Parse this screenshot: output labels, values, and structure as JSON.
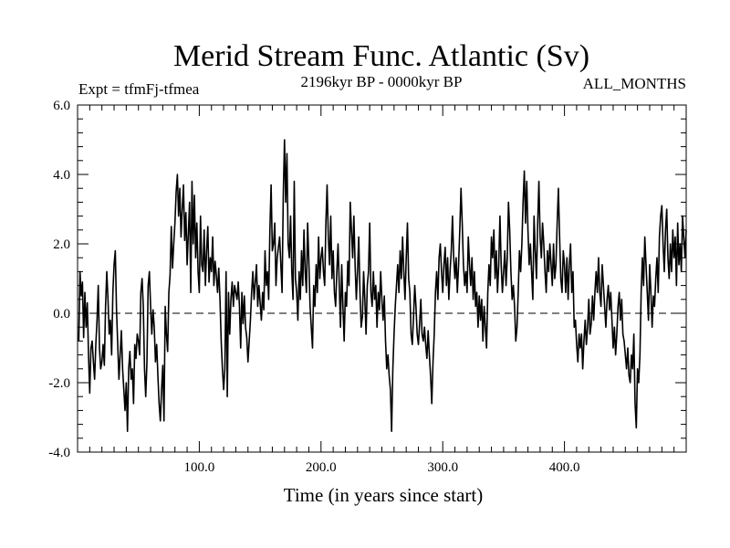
{
  "chart_data": {
    "type": "line",
    "title": "Merid Stream Func. Atlantic (Sv)",
    "subtitle_left": "Expt = tfmFj-tfmea",
    "subtitle_center": "2196kyr BP - 0000kyr BP",
    "subtitle_right": "ALL_MONTHS",
    "xlabel": "Time (in years since start)",
    "ylabel": "",
    "xlim": [
      0,
      500
    ],
    "ylim": [
      -4.0,
      6.0
    ],
    "x_ticks": [
      100,
      200,
      300,
      400
    ],
    "x_tick_labels": [
      "100.0",
      "200.0",
      "300.0",
      "400.0"
    ],
    "y_ticks": [
      -4,
      -2,
      0,
      2,
      4,
      6
    ],
    "y_tick_labels": [
      "-4.0",
      "-2.0",
      "0.0",
      "2.0",
      "4.0",
      "6.0"
    ],
    "reference_line": {
      "y": 0,
      "style": "dashed"
    },
    "series": [
      {
        "name": "Merid Stream Func. Atlantic",
        "x_start": 1,
        "x_step": 1,
        "values": [
          -0.8,
          1.2,
          0.5,
          0.9,
          -0.7,
          0.6,
          -0.4,
          0.3,
          -1.2,
          -2.3,
          -1.0,
          -0.8,
          -1.4,
          -1.9,
          -0.9,
          -0.2,
          0.8,
          -1.0,
          -1.6,
          -1.4,
          -0.9,
          -1.5,
          0.2,
          1.2,
          0.4,
          -0.6,
          -0.2,
          -1.2,
          0.6,
          1.4,
          1.8,
          0.1,
          -0.9,
          -1.9,
          -1.2,
          -0.5,
          -1.6,
          -2.2,
          -2.8,
          -2.0,
          -3.4,
          -1.6,
          -1.1,
          -1.9,
          -1.6,
          -2.6,
          -0.9,
          -1.3,
          -0.6,
          -0.8,
          -1.2,
          0.6,
          1.0,
          0.2,
          -1.6,
          -2.4,
          -1.4,
          0.8,
          1.2,
          0.2,
          -0.6,
          0.1,
          -0.4,
          -1.4,
          -0.9,
          -1.8,
          -2.6,
          -3.1,
          -2.2,
          -1.5,
          -3.1,
          0.2,
          -0.6,
          -1.1,
          0.6,
          1.1,
          2.5,
          1.3,
          2.0,
          2.6,
          3.5,
          4.0,
          2.8,
          3.6,
          2.2,
          3.0,
          3.7,
          2.1,
          2.9,
          1.4,
          2.3,
          3.2,
          0.6,
          3.8,
          2.0,
          3.4,
          1.6,
          2.6,
          1.2,
          0.6,
          2.8,
          1.4,
          1.2,
          2.4,
          0.8,
          1.8,
          2.5,
          0.9,
          1.6,
          1.2,
          2.2,
          0.8,
          1.5,
          1.1,
          0.6,
          1.3,
          0.4,
          -0.8,
          -1.6,
          -2.2,
          -1.6,
          1.2,
          -2.4,
          0.6,
          -0.6,
          0.4,
          0.9,
          0.2,
          0.8,
          0.6,
          0.4,
          0.9,
          0.2,
          -1.0,
          0.6,
          -0.3,
          0.5,
          -0.4,
          -0.7,
          -1.4,
          -0.8,
          -0.2,
          0.6,
          1.2,
          0.4,
          0.9,
          1.4,
          0.2,
          0.8,
          0.3,
          -0.2,
          0.6,
          0.1,
          1.8,
          0.8,
          1.2,
          0.4,
          2.4,
          3.7,
          1.8,
          2.0,
          2.6,
          0.8,
          1.6,
          1.9,
          2.2,
          1.4,
          0.6,
          3.4,
          5.0,
          3.2,
          4.6,
          2.0,
          1.6,
          2.8,
          1.2,
          0.4,
          3.8,
          1.0,
          0.6,
          -0.2,
          1.2,
          0.4,
          1.8,
          0.8,
          2.4,
          1.2,
          0.6,
          2.6,
          1.5,
          0.2,
          -0.4,
          -1.0,
          0.8,
          0.2,
          1.4,
          0.6,
          2.2,
          1.0,
          1.6,
          1.9,
          1.2,
          0.8,
          2.6,
          3.7,
          2.2,
          1.4,
          2.8,
          1.0,
          1.8,
          0.6,
          0.2,
          1.2,
          2.0,
          0.8,
          -0.4,
          1.4,
          0.2,
          -0.8,
          0.6,
          0.2,
          1.5,
          0.8,
          3.2,
          2.4,
          1.6,
          2.8,
          1.4,
          0.4,
          1.2,
          2.2,
          0.6,
          -0.4,
          -0.1,
          1.2,
          0.4,
          -0.6,
          0.8,
          1.2,
          2.6,
          0.6,
          0.2,
          1.2,
          0.4,
          0.8,
          -0.4,
          0.6,
          0.1,
          1.2,
          0.4,
          -0.2,
          0.5,
          -0.8,
          -1.6,
          -1.2,
          -1.8,
          -2.2,
          -3.4,
          -1.6,
          -0.6,
          0.2,
          0.8,
          1.4,
          0.6,
          1.8,
          1.0,
          2.2,
          1.2,
          0.4,
          1.6,
          2.6,
          1.0,
          0.6,
          -0.6,
          -0.9,
          -0.1,
          0.8,
          0.2,
          -0.6,
          -0.9,
          -0.3,
          0.4,
          -0.6,
          -0.8,
          -0.4,
          -0.9,
          -1.3,
          -0.5,
          -1.2,
          -1.8,
          -2.6,
          -1.4,
          -0.6,
          0.6,
          1.2,
          0.4,
          1.6,
          2.0,
          1.2,
          0.6,
          1.4,
          1.9,
          0.8,
          1.6,
          0.4,
          1.2,
          1.8,
          2.8,
          1.6,
          1.0,
          1.6,
          0.6,
          1.4,
          2.4,
          3.6,
          2.6,
          1.4,
          0.8,
          1.2,
          0.6,
          2.2,
          1.4,
          0.8,
          1.6,
          0.4,
          1.2,
          0.2,
          0.6,
          -0.4,
          0.5,
          -0.2,
          0.4,
          -0.8,
          0.2,
          -0.4,
          -1.0,
          0.6,
          1.4,
          0.8,
          2.2,
          1.6,
          2.4,
          1.0,
          1.8,
          0.6,
          1.4,
          2.8,
          1.4,
          0.6,
          1.2,
          1.8,
          0.8,
          1.6,
          3.2,
          2.4,
          1.2,
          0.4,
          0.8,
          0.2,
          -0.8,
          -0.4,
          0.6,
          1.8,
          1.2,
          2.0,
          3.2,
          4.1,
          2.6,
          3.8,
          2.4,
          1.4,
          2.0,
          1.2,
          0.4,
          2.8,
          1.8,
          1.0,
          2.6,
          3.8,
          2.2,
          1.6,
          2.6,
          2.0,
          1.2,
          0.6,
          1.8,
          1.2,
          2.0,
          1.4,
          0.8,
          2.0,
          1.0,
          1.4,
          2.6,
          3.6,
          2.2,
          1.0,
          0.6,
          1.8,
          1.4,
          0.6,
          1.6,
          0.4,
          1.4,
          2.0,
          0.6,
          1.2,
          -0.4,
          -0.2,
          -0.9,
          -1.4,
          -0.6,
          -1.0,
          -0.6,
          -1.6,
          -0.8,
          -0.2,
          -0.9,
          -0.4,
          0.4,
          -0.6,
          -0.3,
          0.5,
          -0.2,
          0.6,
          1.2,
          0.6,
          1.6,
          0.6,
          0.2,
          1.4,
          0.8,
          0.2,
          -0.4,
          0.4,
          0.8,
          0.1,
          0.6,
          -0.2,
          -1.0,
          -0.4,
          -1.2,
          -0.6,
          0.2,
          0.6,
          -0.2,
          0.4,
          -0.6,
          -0.8,
          -1.2,
          -1.6,
          -1.0,
          -1.8,
          -2.0,
          -1.2,
          -1.6,
          -0.6,
          -2.6,
          -3.3,
          -1.6,
          -2.0,
          -1.2,
          0.6,
          1.6,
          0.8,
          2.2,
          1.4,
          0.6,
          -0.2,
          1.4,
          0.6,
          -0.4,
          0.5,
          0.2,
          1.0,
          1.6,
          0.6,
          2.2,
          2.8,
          3.1,
          2.0,
          1.2,
          2.4,
          3.0,
          1.6,
          1.0,
          2.0,
          1.2,
          2.4,
          1.6,
          2.2,
          0.8,
          2.6,
          1.4,
          2.0,
          1.2,
          2.8,
          2.2,
          1.6,
          2.4
        ]
      }
    ]
  }
}
